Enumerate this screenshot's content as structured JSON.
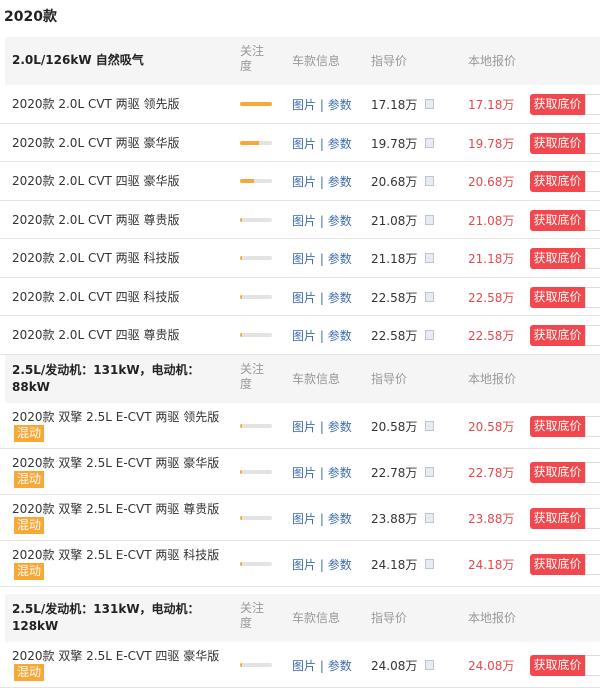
{
  "title": "2020款",
  "headers": {
    "attention": "关注度",
    "info": "车款信息",
    "guide": "指导价",
    "local": "本地报价"
  },
  "links": {
    "pics": "图片",
    "sep": "|",
    "params": "参数"
  },
  "button_label": "获取底价",
  "hybrid_tag": "混动",
  "colors": {
    "accent": "#f2474c",
    "bar": "#f7a836",
    "link": "#3d6bb3"
  },
  "sections": [
    {
      "name": "2.0L/126kW 自然吸气",
      "rows": [
        {
          "name": "2020款 2.0L CVT 两驱 领先版",
          "attention": 100,
          "guide": "17.18万",
          "local": "17.18万"
        },
        {
          "name": "2020款 2.0L CVT 两驱 豪华版",
          "attention": 60,
          "guide": "19.78万",
          "local": "19.78万"
        },
        {
          "name": "2020款 2.0L CVT 四驱 豪华版",
          "attention": 45,
          "guide": "20.68万",
          "local": "20.68万"
        },
        {
          "name": "2020款 2.0L CVT 两驱 尊贵版",
          "attention": 5,
          "guide": "21.08万",
          "local": "21.08万"
        },
        {
          "name": "2020款 2.0L CVT 两驱 科技版",
          "attention": 5,
          "guide": "21.18万",
          "local": "21.18万"
        },
        {
          "name": "2020款 2.0L CVT 四驱 科技版",
          "attention": 5,
          "guide": "22.58万",
          "local": "22.58万"
        },
        {
          "name": "2020款 2.0L CVT 四驱 尊贵版",
          "attention": 5,
          "guide": "22.58万",
          "local": "22.58万"
        }
      ]
    },
    {
      "name": "2.5L/发动机：131kW，电动机：88kW",
      "rows": [
        {
          "name": "2020款 双擎 2.5L E-CVT 两驱 领先版",
          "hybrid": true,
          "attention": 5,
          "guide": "20.58万",
          "local": "20.58万"
        },
        {
          "name": "2020款 双擎 2.5L E-CVT 两驱 豪华版",
          "hybrid": true,
          "attention": 5,
          "guide": "22.78万",
          "local": "22.78万"
        },
        {
          "name": "2020款 双擎 2.5L E-CVT 两驱 尊贵版",
          "hybrid": true,
          "attention": 5,
          "guide": "23.88万",
          "local": "23.88万"
        },
        {
          "name": "2020款 双擎 2.5L E-CVT 两驱 科技版",
          "hybrid": true,
          "attention": 5,
          "guide": "24.18万",
          "local": "24.18万"
        }
      ]
    },
    {
      "name": "2.5L/发动机：131kW，电动机：128kW",
      "rows": [
        {
          "name": "2020款 双擎 2.5L E-CVT 四驱 豪华版",
          "hybrid": true,
          "attention": 5,
          "guide": "24.08万",
          "local": "24.08万"
        }
      ]
    }
  ]
}
